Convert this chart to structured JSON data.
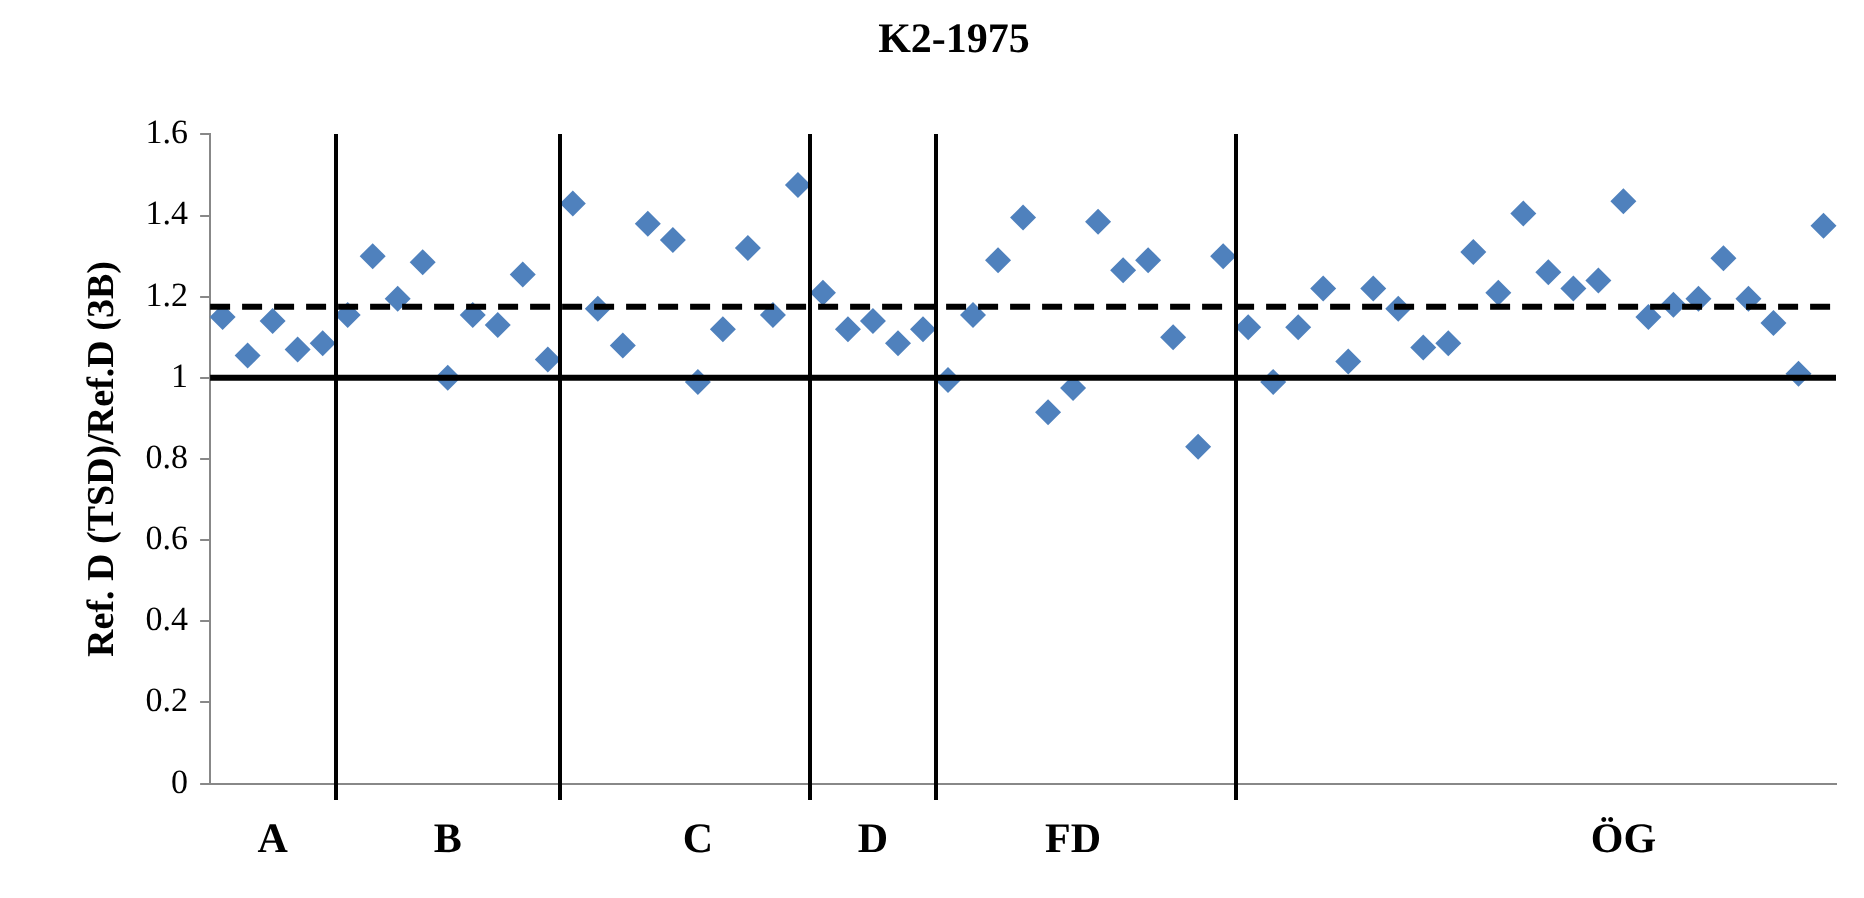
{
  "chart_data": {
    "type": "scatter",
    "title": "K2-1975",
    "ylabel": "Ref. D (TSD)/Ref.D (3B)",
    "categories": [
      null,
      null,
      "A",
      null,
      null,
      null,
      null,
      null,
      null,
      "B",
      null,
      null,
      null,
      null,
      null,
      null,
      null,
      null,
      null,
      "C",
      null,
      null,
      null,
      null,
      null,
      null,
      "D",
      null,
      null,
      null,
      null,
      null,
      null,
      null,
      "FD",
      null,
      null,
      null,
      null,
      null,
      null,
      null,
      null,
      null,
      null,
      null,
      null,
      null,
      null,
      null,
      null,
      null,
      null,
      null,
      null,
      null,
      "ÖG",
      null,
      null,
      null,
      null,
      null,
      null,
      null,
      null
    ],
    "series": [
      {
        "color": "#4f81bd",
        "values": [
          1.15,
          1.055,
          1.14,
          1.07,
          1.085,
          1.155,
          1.3,
          1.195,
          1.285,
          1.0,
          1.155,
          1.13,
          1.255,
          1.045,
          1.43,
          1.17,
          1.08,
          1.38,
          1.34,
          0.99,
          1.12,
          1.32,
          1.155,
          1.475,
          1.21,
          1.12,
          1.14,
          1.085,
          1.12,
          0.995,
          1.155,
          1.29,
          1.395,
          0.915,
          0.975,
          1.385,
          1.265,
          1.29,
          1.1,
          0.83,
          1.3,
          1.125,
          0.99,
          1.125,
          1.22,
          1.04,
          1.22,
          1.17,
          1.075,
          1.085,
          1.31,
          1.21,
          1.405,
          1.26,
          1.22,
          1.24,
          1.435,
          1.15,
          1.18,
          1.195,
          1.295,
          1.195,
          1.135,
          1.01,
          1.375
        ]
      }
    ],
    "ylim": [
      0,
      1.6
    ],
    "yticks": [
      0,
      0.2,
      0.4,
      0.6,
      0.8,
      1,
      1.2,
      1.4,
      1.6
    ],
    "ref_lines": [
      {
        "axis": "y",
        "value": 1,
        "color": "#000000",
        "line_style": "solid"
      },
      {
        "axis": "y",
        "value": 1.175,
        "color": "#000000",
        "line_style": "dashed"
      }
    ],
    "marker": "diamond",
    "grid": false
  }
}
